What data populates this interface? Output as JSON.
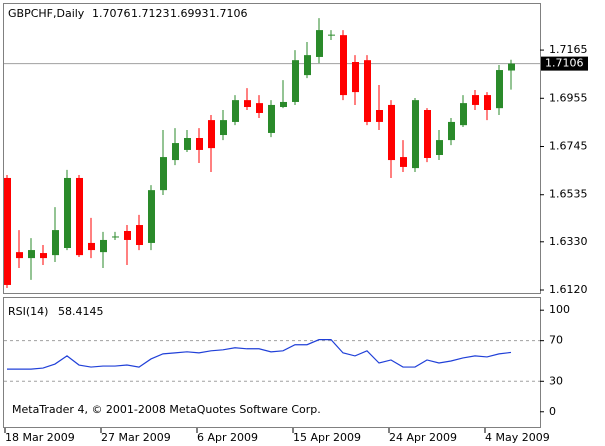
{
  "chart_data": [
    {
      "type": "candlestick",
      "title": "GBPCHF,Daily",
      "categories": [
        "18 Mar 2009",
        null,
        null,
        null,
        null,
        null,
        null,
        null,
        "27 Mar 2009",
        null,
        null,
        null,
        null,
        null,
        null,
        null,
        "6 Apr 2009",
        null,
        null,
        null,
        null,
        null,
        null,
        null,
        "15 Apr 2009",
        null,
        null,
        null,
        null,
        null,
        null,
        null,
        "24 Apr 2009",
        null,
        null,
        null,
        null,
        null,
        null,
        null,
        "4 May 2009",
        null,
        null
      ],
      "open": [
        1.6608,
        1.6285,
        1.6259,
        1.6281,
        1.6272,
        1.6303,
        1.6608,
        1.6325,
        1.6285,
        1.6351,
        1.6377,
        1.6403,
        1.6325,
        1.6555,
        1.6686,
        1.673,
        1.6782,
        1.686,
        1.6795,
        1.6852,
        1.6947,
        1.6934,
        1.6804,
        1.6917,
        1.6939,
        1.7056,
        1.7135,
        1.723,
        1.723,
        1.7113,
        1.7121,
        1.6904,
        1.6926,
        1.6699,
        1.6651,
        1.6904,
        1.6708,
        1.6773,
        1.6838,
        1.6969,
        1.6969,
        1.6912,
        1.7076
      ],
      "high": [
        1.6621,
        1.6381,
        1.6346,
        1.6316,
        1.6481,
        1.6643,
        1.6621,
        1.6434,
        1.6373,
        1.6373,
        1.6403,
        1.6447,
        1.6577,
        1.6817,
        1.6825,
        1.6817,
        1.6825,
        1.6882,
        1.6904,
        1.6969,
        1.6999,
        1.6969,
        1.6947,
        1.7034,
        1.7165,
        1.72,
        1.7304,
        1.7252,
        1.7252,
        1.7143,
        1.7143,
        1.7013,
        1.6947,
        1.6773,
        1.6956,
        1.6912,
        1.6817,
        1.6869,
        1.6969,
        1.6991,
        1.6982,
        1.71,
        1.7123
      ],
      "low": [
        1.6129,
        1.6216,
        1.6164,
        1.6229,
        1.6242,
        1.6294,
        1.6264,
        1.6259,
        1.6216,
        1.6338,
        1.6229,
        1.6294,
        1.6294,
        1.6534,
        1.6664,
        1.6721,
        1.6673,
        1.6634,
        1.6773,
        1.6838,
        1.6904,
        1.6869,
        1.6786,
        1.6912,
        1.6926,
        1.7043,
        1.7108,
        1.7209,
        1.6947,
        1.6926,
        1.6838,
        1.6817,
        1.6608,
        1.6634,
        1.6634,
        1.6677,
        1.6686,
        1.6751,
        1.683,
        1.6904,
        1.686,
        1.6882,
        1.6993
      ],
      "close": [
        1.6142,
        1.6259,
        1.6294,
        1.6259,
        1.6381,
        1.6608,
        1.6272,
        1.6294,
        1.6338,
        1.6351,
        1.6338,
        1.6316,
        1.6555,
        1.6699,
        1.676,
        1.6782,
        1.673,
        1.6738,
        1.686,
        1.6947,
        1.6917,
        1.6891,
        1.6926,
        1.6939,
        1.7121,
        1.7143,
        1.7252,
        1.723,
        1.6969,
        1.6982,
        1.6852,
        1.6852,
        1.6686,
        1.6656,
        1.6947,
        1.6695,
        1.6773,
        1.6852,
        1.6934,
        1.6926,
        1.6904,
        1.7078,
        1.7106
      ],
      "up_color": "#2a8a2a",
      "down_color": "#ff0000",
      "price_line_color": "#a0a0a0",
      "ylim": [
        1.6107,
        1.737
      ],
      "yticks": [
        1.7165,
        1.6955,
        1.6745,
        1.6535,
        {
          "value": 1.633,
          "label": "1.6330"
        },
        {
          "value": 1.612,
          "label": "1.6120"
        }
      ]
    },
    {
      "type": "line",
      "title": "RSI(14)",
      "values": [
        42,
        42,
        42,
        43,
        47,
        55,
        46,
        44,
        45,
        45,
        46,
        44,
        52,
        57,
        58,
        59,
        58,
        60,
        61,
        63,
        62,
        62,
        59,
        60,
        66,
        66,
        71,
        71,
        58,
        55,
        60,
        48,
        51,
        44,
        44,
        51,
        48,
        50,
        53,
        55,
        54,
        57,
        58.4145
      ],
      "color": "#2040d8",
      "ylim": [
        -15,
        112
      ],
      "yticks": [
        100,
        70,
        30,
        0
      ],
      "levels": [
        70,
        30
      ],
      "annotation": "MetaTrader 4, © 2001-2008 MetaQuotes Software Corp."
    }
  ]
}
